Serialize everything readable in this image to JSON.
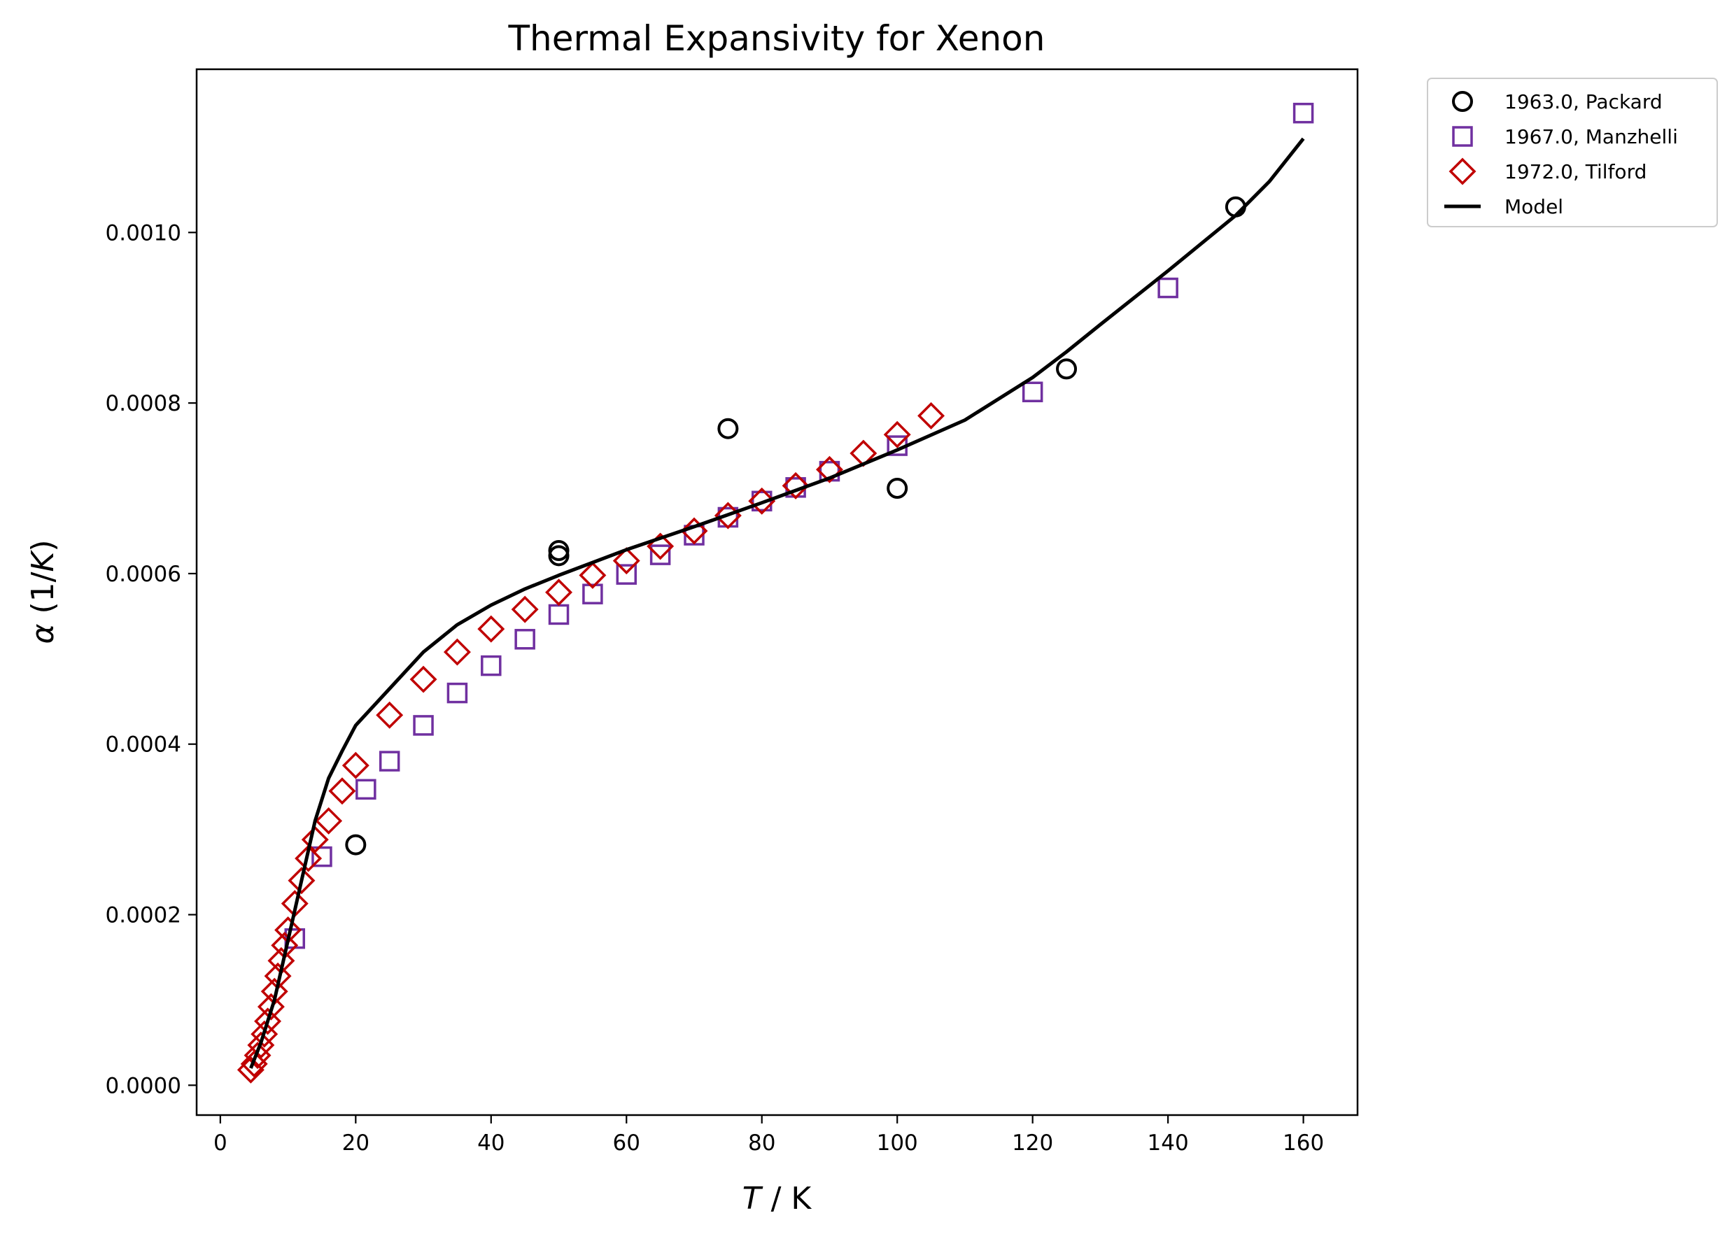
{
  "chart_data": {
    "type": "scatter",
    "title": "Thermal Expansivity for Xenon",
    "xlabel_italic": "T",
    "xlabel_rest": " / K",
    "ylabel_alpha": "α",
    "ylabel_open": " (1/",
    "ylabel_k": "K",
    "ylabel_close": ")",
    "xlim": [
      -3.5,
      168
    ],
    "ylim": [
      -3.5e-05,
      0.0011914
    ],
    "xticks": [
      0,
      20,
      40,
      60,
      80,
      100,
      120,
      140,
      160
    ],
    "xtick_labels": [
      "0",
      "20",
      "40",
      "60",
      "80",
      "100",
      "120",
      "140",
      "160"
    ],
    "yticks": [
      0.0,
      0.0002,
      0.0004,
      0.0006,
      0.0008,
      0.001
    ],
    "ytick_labels": [
      "0.0000",
      "0.0002",
      "0.0004",
      "0.0006",
      "0.0008",
      "0.0010"
    ],
    "grid": false,
    "legend_position": "outside-top-right",
    "series": [
      {
        "name": "1963.0, Packard",
        "marker": "circle",
        "color": "#000000",
        "points": [
          [
            20,
            0.000282
          ],
          [
            50,
            0.000627
          ],
          [
            50,
            0.000621
          ],
          [
            75,
            0.00077
          ],
          [
            100,
            0.0007
          ],
          [
            125,
            0.00084
          ],
          [
            150,
            0.00103
          ]
        ]
      },
      {
        "name": "1967.0, Manzhelli",
        "marker": "square",
        "color": "#7030a0",
        "points": [
          [
            11,
            0.000172
          ],
          [
            15,
            0.000268
          ],
          [
            21.5,
            0.000347
          ],
          [
            25,
            0.00038
          ],
          [
            30,
            0.000422
          ],
          [
            35,
            0.00046
          ],
          [
            40,
            0.000492
          ],
          [
            45,
            0.000523
          ],
          [
            50,
            0.000552
          ],
          [
            55,
            0.000576
          ],
          [
            60,
            0.000599
          ],
          [
            65,
            0.000622
          ],
          [
            70,
            0.000645
          ],
          [
            75,
            0.000666
          ],
          [
            80,
            0.000685
          ],
          [
            85,
            0.000701
          ],
          [
            90,
            0.00072
          ],
          [
            100,
            0.00075
          ],
          [
            120,
            0.000813
          ],
          [
            140,
            0.000935
          ],
          [
            160,
            0.00114
          ]
        ]
      },
      {
        "name": "1972.0, Tilford",
        "marker": "diamond",
        "color": "#c00000",
        "points": [
          [
            4.5,
            1.8e-05
          ],
          [
            5,
            2.5e-05
          ],
          [
            5.5,
            3.5e-05
          ],
          [
            6,
            4.7e-05
          ],
          [
            6.5,
            6e-05
          ],
          [
            7,
            7.5e-05
          ],
          [
            7.5,
            9.2e-05
          ],
          [
            8,
            0.00011
          ],
          [
            8.5,
            0.000128
          ],
          [
            9,
            0.000146
          ],
          [
            9.5,
            0.000164
          ],
          [
            10,
            0.000182
          ],
          [
            11,
            0.000213
          ],
          [
            12,
            0.00024
          ],
          [
            13,
            0.000266
          ],
          [
            14,
            0.000288
          ],
          [
            16,
            0.00031
          ],
          [
            18,
            0.000345
          ],
          [
            20,
            0.000375
          ],
          [
            25,
            0.000434
          ],
          [
            30,
            0.000476
          ],
          [
            35,
            0.000508
          ],
          [
            40,
            0.000535
          ],
          [
            45,
            0.000558
          ],
          [
            50,
            0.000578
          ],
          [
            55,
            0.000598
          ],
          [
            60,
            0.000615
          ],
          [
            65,
            0.000632
          ],
          [
            70,
            0.00065
          ],
          [
            75,
            0.000668
          ],
          [
            80,
            0.000685
          ],
          [
            85,
            0.000703
          ],
          [
            90,
            0.000722
          ],
          [
            95,
            0.000741
          ],
          [
            100,
            0.000763
          ],
          [
            105,
            0.000785
          ]
        ]
      },
      {
        "name": "Model",
        "marker": "line",
        "color": "#000000",
        "points": [
          [
            4.5,
            2e-05
          ],
          [
            6,
            5e-05
          ],
          [
            8,
            0.0001
          ],
          [
            10,
            0.00017
          ],
          [
            12,
            0.00024
          ],
          [
            14,
            0.00031
          ],
          [
            16,
            0.00036
          ],
          [
            18,
            0.000392
          ],
          [
            20,
            0.000422
          ],
          [
            25,
            0.000465
          ],
          [
            30,
            0.000508
          ],
          [
            35,
            0.00054
          ],
          [
            40,
            0.000563
          ],
          [
            45,
            0.000582
          ],
          [
            50,
            0.000598
          ],
          [
            60,
            0.000628
          ],
          [
            70,
            0.000655
          ],
          [
            80,
            0.000683
          ],
          [
            90,
            0.000712
          ],
          [
            100,
            0.000745
          ],
          [
            110,
            0.00078
          ],
          [
            120,
            0.00083
          ],
          [
            125,
            0.00086
          ],
          [
            130,
            0.000892
          ],
          [
            140,
            0.000955
          ],
          [
            150,
            0.00102
          ],
          [
            155,
            0.00106
          ],
          [
            160,
            0.00111
          ]
        ]
      }
    ]
  }
}
